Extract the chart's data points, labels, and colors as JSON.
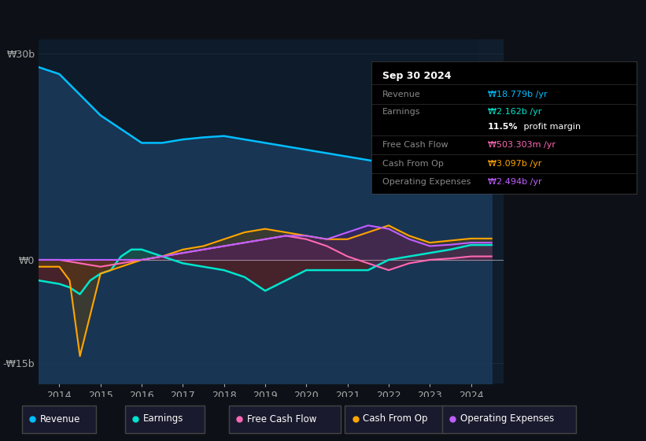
{
  "bg_color": "#0d1117",
  "plot_bg_color": "#0d1b2a",
  "legend": [
    {
      "label": "Revenue",
      "color": "#00bfff"
    },
    {
      "label": "Earnings",
      "color": "#00e5cc"
    },
    {
      "label": "Free Cash Flow",
      "color": "#ff69b4"
    },
    {
      "label": "Cash From Op",
      "color": "#ffa500"
    },
    {
      "label": "Operating Expenses",
      "color": "#bf5fff"
    }
  ],
  "revenue": {
    "x": [
      2013.5,
      2014.0,
      2014.5,
      2015.0,
      2015.5,
      2016.0,
      2016.5,
      2017.0,
      2017.5,
      2018.0,
      2018.5,
      2019.0,
      2019.5,
      2020.0,
      2020.5,
      2021.0,
      2021.5,
      2022.0,
      2022.5,
      2023.0,
      2023.5,
      2024.0,
      2024.5
    ],
    "y": [
      28,
      27,
      24,
      21,
      19,
      17,
      17,
      17.5,
      17.8,
      18,
      17.5,
      17,
      16.5,
      16,
      15.5,
      15,
      14.5,
      14,
      14.5,
      15,
      16,
      17,
      18.779
    ],
    "color": "#00bfff",
    "fill_color": "#1a3a5c",
    "fill_alpha": 0.85
  },
  "earnings": {
    "x": [
      2013.5,
      2014.0,
      2014.25,
      2014.5,
      2014.75,
      2015.0,
      2015.25,
      2015.5,
      2015.75,
      2016.0,
      2016.5,
      2017.0,
      2017.5,
      2018.0,
      2018.5,
      2019.0,
      2019.5,
      2020.0,
      2020.5,
      2021.0,
      2021.5,
      2022.0,
      2022.5,
      2023.0,
      2023.5,
      2024.0,
      2024.5
    ],
    "y": [
      -3,
      -3.5,
      -4,
      -5,
      -3,
      -2,
      -1.5,
      0.5,
      1.5,
      1.5,
      0.5,
      -0.5,
      -1,
      -1.5,
      -2.5,
      -4.5,
      -3,
      -1.5,
      -1.5,
      -1.5,
      -1.5,
      0,
      0.5,
      1,
      1.5,
      2.162,
      2.162
    ],
    "color": "#00e5cc",
    "fill_pos_color": "#1a5a40",
    "fill_neg_color": "#5a1a1a",
    "fill_alpha": 0.6
  },
  "free_cash_flow": {
    "x": [
      2013.5,
      2014.0,
      2014.5,
      2015.0,
      2015.5,
      2016.0,
      2016.5,
      2017.0,
      2017.5,
      2018.0,
      2018.5,
      2019.0,
      2019.5,
      2020.0,
      2020.5,
      2021.0,
      2021.5,
      2022.0,
      2022.5,
      2023.0,
      2023.5,
      2024.0,
      2024.5
    ],
    "y": [
      0,
      0,
      -0.5,
      -1,
      -0.5,
      0,
      0.5,
      1,
      1.5,
      2,
      2.5,
      3,
      3.5,
      3,
      2,
      0.5,
      -0.5,
      -1.5,
      -0.5,
      0,
      0.2,
      0.5,
      0.503
    ],
    "color": "#ff69b4",
    "fill_color": "#6a2040",
    "fill_alpha": 0.5
  },
  "cash_from_op": {
    "x": [
      2013.5,
      2014.0,
      2014.25,
      2014.5,
      2014.75,
      2015.0,
      2015.5,
      2016.0,
      2016.5,
      2017.0,
      2017.5,
      2018.0,
      2018.5,
      2019.0,
      2019.5,
      2020.0,
      2020.5,
      2021.0,
      2021.5,
      2022.0,
      2022.5,
      2023.0,
      2023.5,
      2024.0,
      2024.5
    ],
    "y": [
      -1,
      -1,
      -3,
      -14,
      -8,
      -2,
      -1,
      0,
      0.5,
      1.5,
      2,
      3,
      4,
      4.5,
      4,
      3.5,
      3,
      3,
      4,
      5,
      3.5,
      2.5,
      2.8,
      3.097,
      3.097
    ],
    "color": "#ffa500",
    "fill_color": "#5a4010",
    "fill_alpha": 0.5
  },
  "operating_expenses": {
    "x": [
      2013.5,
      2014.0,
      2014.5,
      2015.0,
      2015.5,
      2016.0,
      2016.5,
      2017.0,
      2017.5,
      2018.0,
      2018.5,
      2019.0,
      2019.5,
      2020.0,
      2020.5,
      2021.0,
      2021.5,
      2022.0,
      2022.5,
      2023.0,
      2023.5,
      2024.0,
      2024.5
    ],
    "y": [
      0,
      0,
      0,
      0,
      0,
      0,
      0.5,
      1,
      1.5,
      2,
      2.5,
      3,
      3.5,
      3.5,
      3,
      4,
      5,
      4.5,
      3,
      2,
      2.2,
      2.5,
      2.494
    ],
    "color": "#bf5fff",
    "fill_color": "#4a1a6a",
    "fill_alpha": 0.5
  },
  "info_box": {
    "date": "Sep 30 2024",
    "rows": [
      {
        "label": "Revenue",
        "value": "₩18.779b /yr",
        "value_color": "#00bfff",
        "divider_below": true
      },
      {
        "label": "Earnings",
        "value": "₩2.162b /yr",
        "value_color": "#00e5cc",
        "divider_below": false
      },
      {
        "label": "",
        "value": "11.5% profit margin",
        "value_color": "#ffffff",
        "divider_below": true
      },
      {
        "label": "Free Cash Flow",
        "value": "₩503.303m /yr",
        "value_color": "#ff69b4",
        "divider_below": true
      },
      {
        "label": "Cash From Op",
        "value": "₩3.097b /yr",
        "value_color": "#ffa500",
        "divider_below": true
      },
      {
        "label": "Operating Expenses",
        "value": "₩2.494b /yr",
        "value_color": "#bf5fff",
        "divider_below": false
      }
    ]
  }
}
